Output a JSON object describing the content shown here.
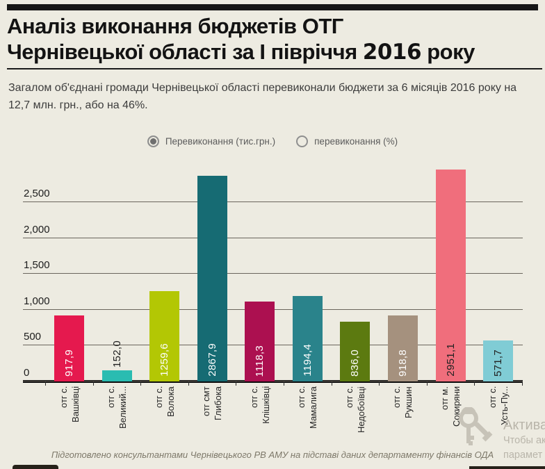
{
  "header": {
    "title_line1": "Аналіз виконання бюджетів ОТГ",
    "title_line2_pre": "Чернівецької області за І півріччя ",
    "title_line2_year": "2016",
    "title_line2_post": " року",
    "subtitle": "Загалом об'єднані громади Чернівецької області перевиконали бюджети за 6 місяців 2016 року на 12,7 млн. грн., або на 46%."
  },
  "legend": {
    "selected_label": "Перевиконання (тис.грн.)",
    "unselected_label": "перевиконання (%)"
  },
  "chart_data": {
    "type": "bar",
    "title": "Аналіз виконання бюджетів ОТГ Чернівецької області за І півріччя 2016 року",
    "xlabel": "",
    "ylabel": "Перевиконання (тис.грн.)",
    "ylim": [
      0,
      3000
    ],
    "grid": true,
    "legend_position": "top",
    "categories": [
      "отг с. Вашківці",
      "отг с. Великий...",
      "отг с. Волока",
      "отг смт Глибока",
      "отг с. Клішківці",
      "отг с. Мамалига",
      "отг с. Недобоївці",
      "отг с. Рукшин",
      "отг м. Сокиряни",
      "отг с. Усть-Пу..."
    ],
    "values": [
      917.9,
      152.0,
      1259.6,
      2867.9,
      1118.3,
      1194.4,
      836.0,
      918.8,
      2951.1,
      571.7
    ],
    "yticks": [
      {
        "label": "2,500",
        "value": 2500
      },
      {
        "label": "2,000",
        "value": 2000
      },
      {
        "label": "1,500",
        "value": 1500
      },
      {
        "label": "1,000",
        "value": 1000
      },
      {
        "label": "500",
        "value": 500
      },
      {
        "label": "0",
        "value": 0
      }
    ],
    "items": [
      {
        "line1": "отг с.",
        "line2": "Вашківці",
        "value": 917.9,
        "value_label": "917,9",
        "color": "#E5194E",
        "value_color": "#FFFFFF",
        "value_outside": false
      },
      {
        "line1": "отг с.",
        "line2": "Великий...",
        "value": 152.0,
        "value_label": "152,0",
        "color": "#2ABCB1",
        "value_color": "#1F1F1F",
        "value_outside": true
      },
      {
        "line1": "отг с.",
        "line2": "Волока",
        "value": 1259.6,
        "value_label": "1259,6",
        "color": "#B3C704",
        "value_color": "#FFFFFF",
        "value_outside": false
      },
      {
        "line1": "отг смт",
        "line2": "Глибока",
        "value": 2867.9,
        "value_label": "2867,9",
        "color": "#166B73",
        "value_color": "#FFFFFF",
        "value_outside": false
      },
      {
        "line1": "отг с.",
        "line2": "Клішківці",
        "value": 1118.3,
        "value_label": "1118,3",
        "color": "#AC1050",
        "value_color": "#FFFFFF",
        "value_outside": false
      },
      {
        "line1": "отг с.",
        "line2": "Мамалига",
        "value": 1194.4,
        "value_label": "1194,4",
        "color": "#2A838B",
        "value_color": "#FFFFFF",
        "value_outside": false
      },
      {
        "line1": "отг с.",
        "line2": "Недобоївці",
        "value": 836.0,
        "value_label": "836,0",
        "color": "#5C7A10",
        "value_color": "#FFFFFF",
        "value_outside": false
      },
      {
        "line1": "отг с.",
        "line2": "Рукшин",
        "value": 918.8,
        "value_label": "918,8",
        "color": "#A5917E",
        "value_color": "#FFFFFF",
        "value_outside": false
      },
      {
        "line1": "отг м.",
        "line2": "Сокиряни",
        "value": 2951.1,
        "value_label": "2951,1",
        "color": "#F06E7C",
        "value_color": "#222222",
        "value_outside": false
      },
      {
        "line1": "отг с.",
        "line2": "Усть-Пу...",
        "value": 571.7,
        "value_label": "571,7",
        "color": "#80CCD5",
        "value_color": "#222222",
        "value_outside": false
      }
    ]
  },
  "colors": {
    "background": "#EDEBE1",
    "baseline": "#0D0D0D",
    "gridline": "#6A655C",
    "header_bar": "#161616"
  },
  "footer": {
    "credit": "Підготовлено консультантами Чернівецького РВ АМУ на підставі даних департаменту фінансів ОДА"
  },
  "watermark": {
    "line1": "Актива",
    "line2": "Чтобы ак",
    "line3": "парамет"
  }
}
